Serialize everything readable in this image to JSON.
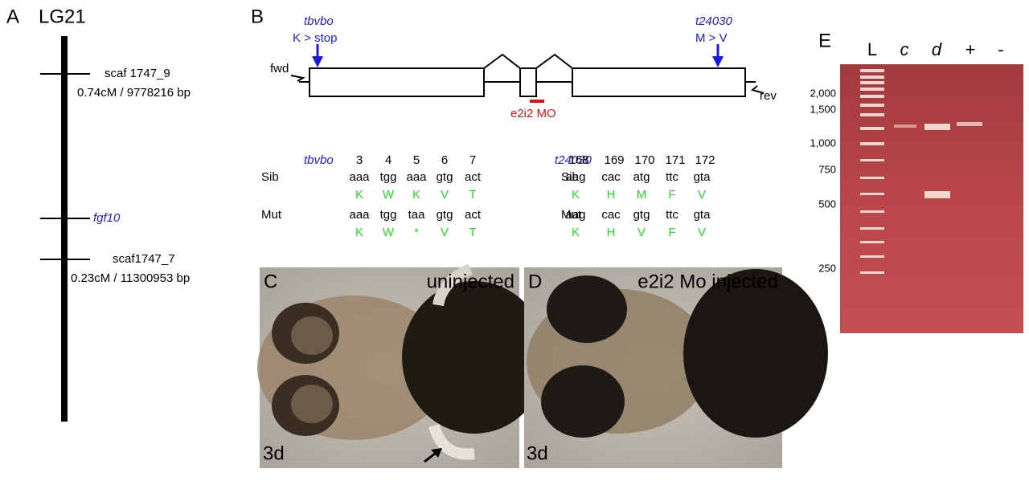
{
  "panel_a": {
    "label": "A",
    "title": "LG21",
    "markers": [
      {
        "name": "scaf 1747_9",
        "position": "0.74cM / 9778216 bp"
      },
      {
        "name": "fgf10"
      },
      {
        "name": "scaf1747_7",
        "position": "0.23cM / 11300953 bp"
      }
    ]
  },
  "panel_b": {
    "label": "B",
    "mutations": [
      {
        "allele": "tbvbo",
        "change": "K > stop"
      },
      {
        "allele": "t24030",
        "change": "M > V"
      }
    ],
    "primers": [
      "fwd",
      "rev"
    ],
    "morpholino": "e2i2 MO",
    "tables": [
      {
        "allele": "tbvbo",
        "codons": [
          "3",
          "4",
          "5",
          "6",
          "7"
        ],
        "rows": [
          {
            "label": "Sib",
            "triplets": [
              "aaa",
              "tgg",
              "aaa",
              "gtg",
              "act"
            ],
            "residues": [
              "K",
              "W",
              "K",
              "V",
              "T"
            ]
          },
          {
            "label": "Mut",
            "triplets": [
              "aaa",
              "tgg",
              "taa",
              "gtg",
              "act"
            ],
            "residues": [
              "K",
              "W",
              "*",
              "V",
              "T"
            ]
          }
        ]
      },
      {
        "allele": "t24030",
        "codons": [
          "168",
          "169",
          "170",
          "171",
          "172"
        ],
        "rows": [
          {
            "label": "Sib",
            "triplets": [
              "aag",
              "cac",
              "atg",
              "ttc",
              "gta"
            ],
            "residues": [
              "K",
              "H",
              "M",
              "F",
              "V"
            ]
          },
          {
            "label": "Mut",
            "triplets": [
              "aag",
              "cac",
              "gtg",
              "ttc",
              "gta"
            ],
            "residues": [
              "K",
              "H",
              "V",
              "F",
              "V"
            ]
          }
        ]
      }
    ]
  },
  "panel_c": {
    "label": "C",
    "condition": "uninjected",
    "age": "3d"
  },
  "panel_d": {
    "label": "D",
    "condition": "e2i2 Mo injected",
    "age": "3d"
  },
  "panel_e": {
    "label": "E",
    "lanes": [
      "L",
      "c",
      "d",
      "+",
      "-"
    ],
    "ladder": [
      "2,000",
      "1,500",
      "1,000",
      "750",
      "500",
      "250"
    ]
  }
}
